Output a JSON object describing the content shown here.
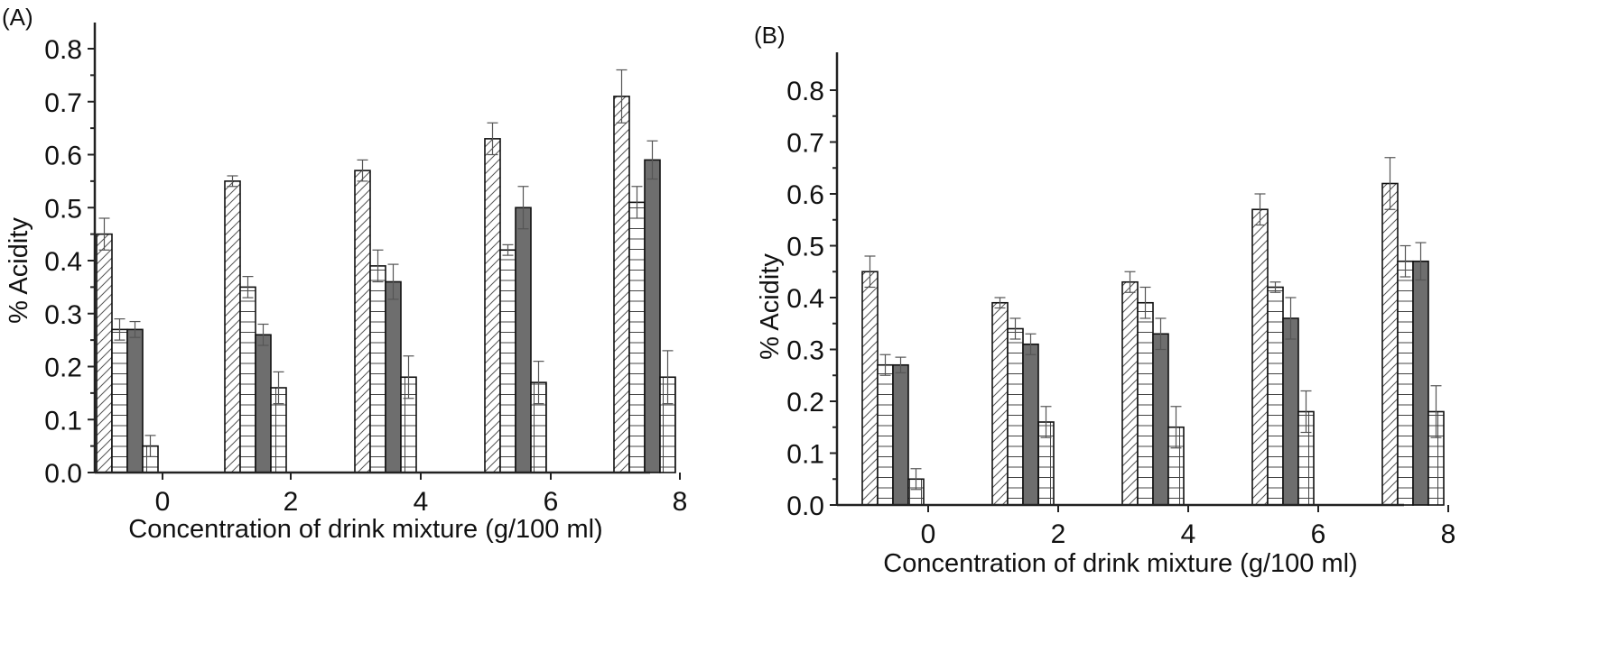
{
  "chart_data": [
    {
      "type": "bar",
      "panel_label": "(A)",
      "title": "",
      "xlabel": "Concentration of drink mixture (g/100 ml)",
      "ylabel": "% Acidity",
      "categories": [
        "0",
        "2",
        "4",
        "6",
        "8"
      ],
      "ylim": [
        0,
        0.85
      ],
      "yticks": [
        "0.0",
        "0.1",
        "0.2",
        "0.3",
        "0.4",
        "0.5",
        "0.6",
        "0.7",
        "0.8"
      ],
      "grid": false,
      "legend": "none",
      "series": [
        {
          "name": "diagonal-hatch",
          "pattern": "diagonal",
          "values": [
            0.45,
            0.55,
            0.57,
            0.63,
            0.71
          ],
          "errors": [
            0.03,
            0.01,
            0.02,
            0.03,
            0.05
          ]
        },
        {
          "name": "horizontal-hatch",
          "pattern": "horizontal",
          "values": [
            0.27,
            0.35,
            0.39,
            0.42,
            0.51
          ],
          "errors": [
            0.02,
            0.02,
            0.03,
            0.01,
            0.03
          ]
        },
        {
          "name": "solid-gray",
          "pattern": "solid",
          "values": [
            0.27,
            0.26,
            0.36,
            0.5,
            0.59
          ],
          "errors": [
            0.015,
            0.02,
            0.033,
            0.04,
            0.036
          ]
        },
        {
          "name": "grid-hatch",
          "pattern": "grid",
          "values": [
            0.05,
            0.16,
            0.18,
            0.17,
            0.18
          ],
          "errors": [
            0.02,
            0.03,
            0.04,
            0.04,
            0.05
          ]
        }
      ]
    },
    {
      "type": "bar",
      "panel_label": "(B)",
      "title": "",
      "xlabel": "Concentration of drink mixture (g/100 ml)",
      "ylabel": "% Acidity",
      "categories": [
        "0",
        "2",
        "4",
        "6",
        "8"
      ],
      "ylim": [
        0,
        0.85
      ],
      "yticks": [
        "0.0",
        "0.1",
        "0.2",
        "0.3",
        "0.4",
        "0.5",
        "0.6",
        "0.7",
        "0.8"
      ],
      "grid": false,
      "legend": "none",
      "series": [
        {
          "name": "diagonal-hatch",
          "pattern": "diagonal",
          "values": [
            0.45,
            0.39,
            0.43,
            0.57,
            0.62
          ],
          "errors": [
            0.03,
            0.01,
            0.02,
            0.03,
            0.05
          ]
        },
        {
          "name": "horizontal-hatch",
          "pattern": "horizontal",
          "values": [
            0.27,
            0.34,
            0.39,
            0.42,
            0.47
          ],
          "errors": [
            0.02,
            0.02,
            0.03,
            0.01,
            0.03
          ]
        },
        {
          "name": "solid-gray",
          "pattern": "solid",
          "values": [
            0.27,
            0.31,
            0.33,
            0.36,
            0.47
          ],
          "errors": [
            0.015,
            0.02,
            0.03,
            0.04,
            0.036
          ]
        },
        {
          "name": "grid-hatch",
          "pattern": "grid",
          "values": [
            0.05,
            0.16,
            0.15,
            0.18,
            0.18
          ],
          "errors": [
            0.02,
            0.03,
            0.04,
            0.04,
            0.05
          ]
        }
      ]
    }
  ]
}
